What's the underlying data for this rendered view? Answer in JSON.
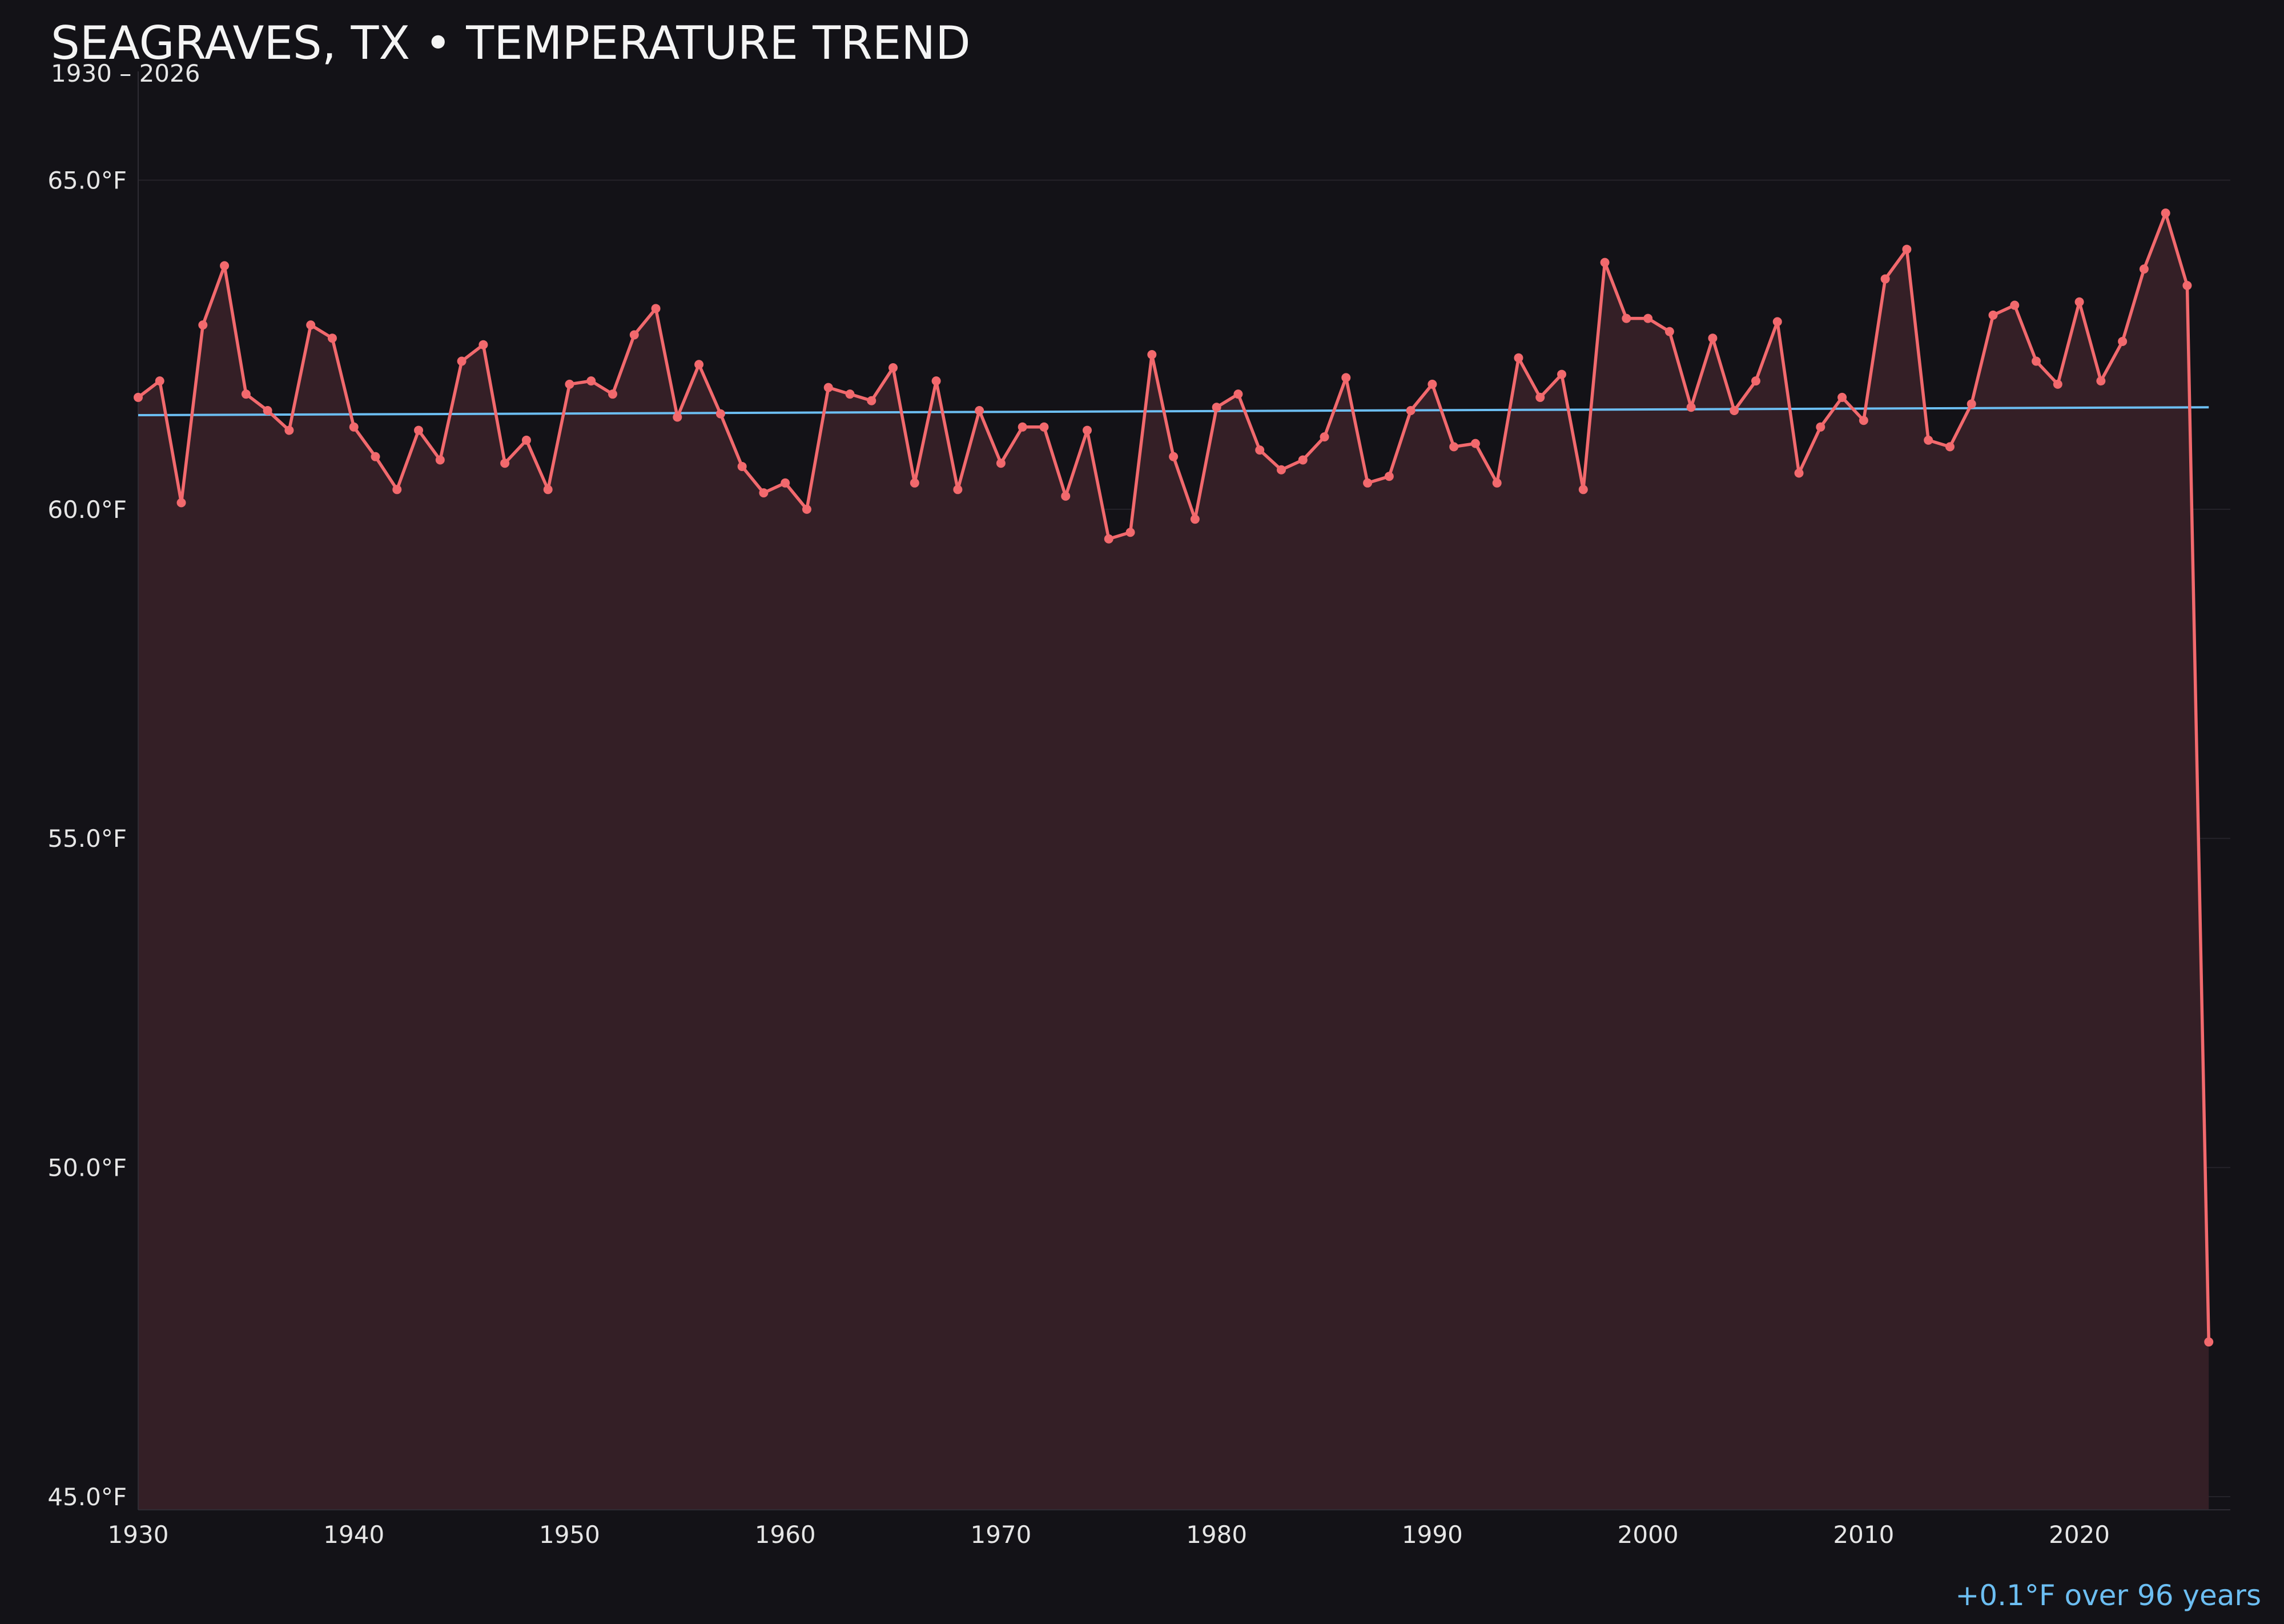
{
  "chart_data": {
    "type": "line",
    "title": "SEAGRAVES, TX • TEMPERATURE TREND",
    "subtitle": "1930 – 2026",
    "xlabel": "",
    "ylabel": "",
    "xlim": [
      1930,
      2027
    ],
    "ylim": [
      44.8,
      67.0
    ],
    "grid": true,
    "x_ticks": [
      1930,
      1940,
      1950,
      1960,
      1970,
      1980,
      1990,
      2000,
      2010,
      2020
    ],
    "y_ticks": [
      45.0,
      50.0,
      55.0,
      60.0,
      65.0
    ],
    "y_tick_labels": [
      "45.0°F",
      "50.0°F",
      "55.0°F",
      "60.0°F",
      "65.0°F"
    ],
    "series": [
      {
        "kind": "annual-mean",
        "color": "#f2696d",
        "fill": "#341f26",
        "x": [
          1930,
          1931,
          1932,
          1933,
          1934,
          1935,
          1936,
          1937,
          1938,
          1939,
          1940,
          1941,
          1942,
          1943,
          1944,
          1945,
          1946,
          1947,
          1948,
          1949,
          1950,
          1951,
          1952,
          1953,
          1954,
          1955,
          1956,
          1957,
          1958,
          1959,
          1960,
          1961,
          1962,
          1963,
          1964,
          1965,
          1966,
          1967,
          1968,
          1969,
          1970,
          1971,
          1972,
          1973,
          1974,
          1975,
          1976,
          1977,
          1978,
          1979,
          1980,
          1981,
          1982,
          1983,
          1984,
          1985,
          1986,
          1987,
          1988,
          1989,
          1990,
          1991,
          1992,
          1993,
          1994,
          1995,
          1996,
          1997,
          1998,
          1999,
          2000,
          2001,
          2002,
          2003,
          2004,
          2005,
          2006,
          2007,
          2008,
          2009,
          2010,
          2011,
          2012,
          2013,
          2014,
          2015,
          2016,
          2017,
          2018,
          2019,
          2020,
          2021,
          2022,
          2023,
          2024,
          2025,
          2026
        ],
        "y": [
          61.7,
          61.95,
          60.1,
          62.8,
          63.7,
          61.75,
          61.5,
          61.2,
          62.8,
          62.6,
          61.25,
          60.8,
          60.3,
          61.2,
          60.75,
          62.25,
          62.5,
          60.7,
          61.05,
          60.3,
          61.9,
          61.95,
          61.75,
          62.65,
          63.05,
          61.4,
          62.2,
          61.45,
          60.65,
          60.25,
          60.4,
          60.0,
          61.85,
          61.75,
          61.65,
          62.15,
          60.4,
          61.95,
          60.3,
          61.5,
          60.7,
          61.25,
          61.25,
          60.2,
          61.2,
          59.55,
          59.65,
          62.35,
          60.8,
          59.85,
          61.55,
          61.75,
          60.9,
          60.6,
          60.75,
          61.1,
          62.0,
          60.4,
          60.5,
          61.5,
          61.9,
          60.95,
          61.0,
          60.4,
          62.3,
          61.7,
          62.05,
          60.3,
          63.75,
          62.9,
          62.9,
          62.7,
          61.55,
          62.6,
          61.5,
          61.95,
          62.85,
          60.55,
          61.25,
          61.7,
          61.35,
          63.5,
          63.95,
          61.05,
          60.95,
          61.6,
          62.95,
          63.1,
          62.25,
          61.9,
          63.15,
          61.95,
          62.55,
          63.65,
          64.5,
          63.4,
          47.35
        ]
      },
      {
        "kind": "trend",
        "color": "#6cbef2",
        "x": [
          1930,
          2026
        ],
        "y": [
          61.43,
          61.55
        ]
      }
    ],
    "annotations": [
      {
        "text": "+0.1°F over 96 years",
        "color": "#6cbef2",
        "position": "bottom-right"
      }
    ]
  }
}
